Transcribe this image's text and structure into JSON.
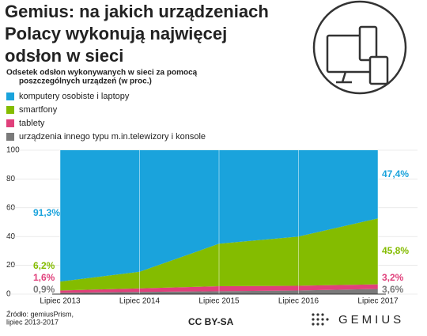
{
  "chart_data": {
    "type": "stacked_area",
    "title": [
      "Gemius: na jakich urządzeniach",
      "Polacy wykonują najwięcej",
      "odsłon w sieci"
    ],
    "subtitle": [
      "Odsetek odsłon wykonywanych w sieci za pomocą",
      "poszczególnych urządzeń (w proc.)"
    ],
    "categories": [
      "Lipiec 2013",
      "Lipiec 2014",
      "Lipiec 2015",
      "Lipiec 2016",
      "Lipiec 2017"
    ],
    "series": [
      {
        "name": "urządzenia innego typu m.in.telewizory i konsole",
        "color": "#7a7a7a",
        "values": [
          0.9,
          1.5,
          2.0,
          2.5,
          3.6
        ],
        "value_labels": [
          "0,9%",
          null,
          null,
          null,
          "3,6%"
        ]
      },
      {
        "name": "tablety",
        "color": "#e0407b",
        "values": [
          1.6,
          2.5,
          3.5,
          3.3,
          3.2
        ],
        "value_labels": [
          "1,6%",
          null,
          null,
          null,
          "3,2%"
        ]
      },
      {
        "name": "smartfony",
        "color": "#84bc00",
        "values": [
          6.2,
          11.5,
          29.5,
          34.2,
          45.8
        ],
        "value_labels": [
          "6,2%",
          null,
          null,
          null,
          "45,8%"
        ]
      },
      {
        "name": "komputery osobiste i laptopy",
        "color": "#1aa3dc",
        "values": [
          91.3,
          84.5,
          65.0,
          60.0,
          47.4
        ],
        "value_labels": [
          "91,3%",
          null,
          null,
          null,
          "47,4%"
        ]
      }
    ],
    "ylim": [
      0,
      100
    ],
    "yticks": [
      0,
      20,
      40,
      60,
      80,
      100
    ],
    "grid": true,
    "source": [
      "Źródło: gemiusPrism,",
      "lipiec 2013-2017"
    ],
    "license": "CC BY-SA",
    "brand": "GEMIUS"
  }
}
